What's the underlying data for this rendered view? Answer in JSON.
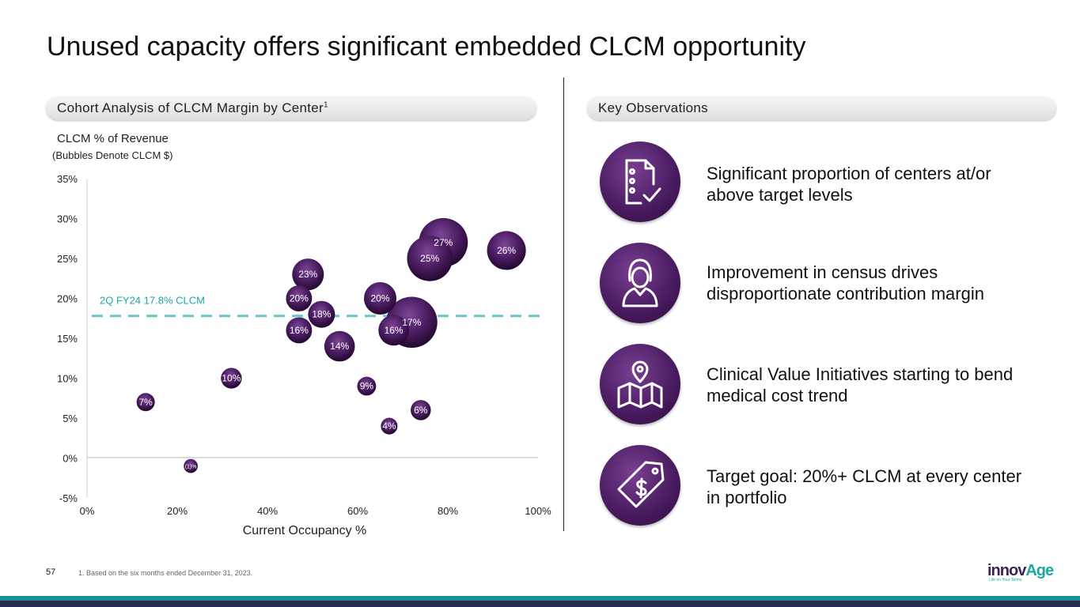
{
  "title": "Unused capacity offers significant embedded CLCM opportunity",
  "left_header": {
    "label": "Cohort Analysis of CLCM Margin by Center",
    "sup": "1"
  },
  "right_header": {
    "label": "Key Observations"
  },
  "chart_data": {
    "type": "bubble",
    "title": "CLCM % of Revenue",
    "subtitle": "(Bubbles Denote CLCM $)",
    "xlabel": "Current Occupancy %",
    "ylabel": "CLCM % of Revenue",
    "xlim": [
      0,
      100
    ],
    "ylim": [
      -5,
      35
    ],
    "x_ticks": [
      "0%",
      "20%",
      "40%",
      "60%",
      "80%",
      "100%"
    ],
    "y_ticks": [
      "35%",
      "30%",
      "25%",
      "20%",
      "15%",
      "10%",
      "5%",
      "0%",
      "-5%"
    ],
    "reference_line": {
      "label": "2Q FY24 17.8% CLCM",
      "y": 17.8
    },
    "points": [
      {
        "label": "7%",
        "x": 13,
        "y": 7,
        "size": 1
      },
      {
        "label": "(1)%",
        "x": 23,
        "y": -1,
        "size": 0.5
      },
      {
        "label": "10%",
        "x": 32,
        "y": 10,
        "size": 1.4
      },
      {
        "label": "23%",
        "x": 49,
        "y": 23,
        "size": 3.8
      },
      {
        "label": "20%",
        "x": 47,
        "y": 20,
        "size": 2.4
      },
      {
        "label": "18%",
        "x": 52,
        "y": 18,
        "size": 2.6
      },
      {
        "label": "16%",
        "x": 47,
        "y": 16,
        "size": 2.4
      },
      {
        "label": "14%",
        "x": 56,
        "y": 14,
        "size": 3.5
      },
      {
        "label": "20%",
        "x": 65,
        "y": 20,
        "size": 4.0
      },
      {
        "label": "9%",
        "x": 62,
        "y": 9,
        "size": 1.1
      },
      {
        "label": "4%",
        "x": 67,
        "y": 4,
        "size": 0.8
      },
      {
        "label": "25%",
        "x": 76,
        "y": 25,
        "size": 8.5
      },
      {
        "label": "17%",
        "x": 72,
        "y": 17,
        "size": 11
      },
      {
        "label": "16%",
        "x": 68,
        "y": 16,
        "size": 3.5
      },
      {
        "label": "6%",
        "x": 74,
        "y": 6,
        "size": 1.3
      },
      {
        "label": "27%",
        "x": 79,
        "y": 27,
        "size": 10
      },
      {
        "label": "26%",
        "x": 93,
        "y": 26,
        "size": 6
      }
    ]
  },
  "observations": [
    {
      "icon": "checklist-icon",
      "text": "Significant proportion of centers at/or above target levels"
    },
    {
      "icon": "person-icon",
      "text": "Improvement in census drives disproportionate contribution margin"
    },
    {
      "icon": "map-pin-icon",
      "text": "Clinical Value Initiatives starting to bend medical cost trend"
    },
    {
      "icon": "price-tag-icon",
      "text": "Target goal: 20%+ CLCM at every center in portfolio"
    }
  ],
  "footer": {
    "page_number": "57",
    "footnote": "1.  Based on the six months ended December 31, 2023."
  },
  "logo": {
    "part1": "innov",
    "part2": "Age",
    "tagline": "Life on Your Terms"
  },
  "colors": {
    "accent_teal": "#1fa7a2",
    "bubble_purple": "#4b1d62",
    "footer_navy": "#2b2b55"
  }
}
